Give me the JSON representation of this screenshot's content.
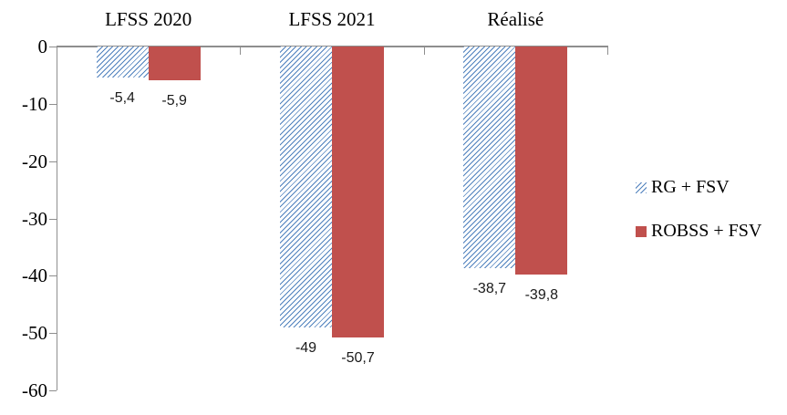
{
  "chart_data": {
    "type": "bar",
    "title": "",
    "categories": [
      "LFSS 2020",
      "LFSS 2021",
      "Réalisé"
    ],
    "series": [
      {
        "name": "RG + FSV",
        "values": [
          -5.4,
          -49,
          -38.7
        ],
        "display_labels": [
          "-5,4",
          "-49",
          "-38,7"
        ],
        "fill_style": "hatched-diagonal",
        "color": "#4f81bd"
      },
      {
        "name": "ROBSS + FSV",
        "values": [
          -5.9,
          -50.7,
          -39.8
        ],
        "display_labels": [
          "-5,9",
          "-50,7",
          "-39,8"
        ],
        "fill_style": "solid",
        "color": "#c0504d"
      }
    ],
    "y_axis": {
      "min": -60,
      "max": 0,
      "step": 10,
      "tick_labels": [
        "0",
        "-10",
        "-20",
        "-30",
        "-40",
        "-50",
        "-60"
      ]
    },
    "x_axis_position": "top",
    "grid": false,
    "legend_position": "right",
    "axis_color": "#8e8e8e",
    "label_text_color": "#1a1a1a"
  }
}
